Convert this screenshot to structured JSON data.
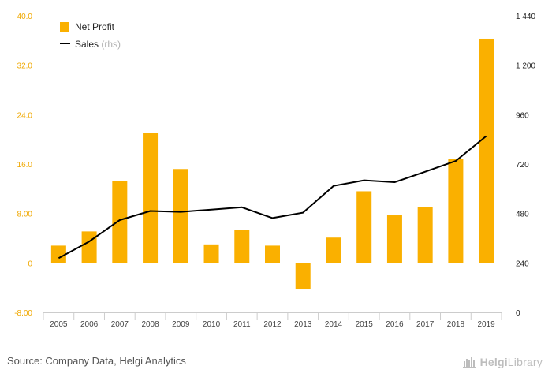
{
  "chart_data": {
    "type": "bar",
    "categories": [
      "2005",
      "2006",
      "2007",
      "2008",
      "2009",
      "2010",
      "2011",
      "2012",
      "2013",
      "2014",
      "2015",
      "2016",
      "2017",
      "2018",
      "2019"
    ],
    "series": [
      {
        "name": "Net Profit",
        "kind": "bar",
        "axis": "left",
        "color": "#FAB000",
        "values": [
          2.8,
          5.1,
          13.2,
          21.1,
          15.2,
          3.0,
          5.4,
          2.8,
          -4.3,
          4.1,
          11.6,
          7.7,
          9.1,
          16.8,
          36.3
        ]
      },
      {
        "name": "Sales",
        "kind": "line",
        "axis": "right",
        "color": "#000000",
        "values": [
          263,
          344,
          448,
          492,
          488,
          499,
          510,
          458,
          484,
          614,
          641,
          632,
          683,
          735,
          856
        ]
      }
    ],
    "y_left": {
      "ylim": [
        -8,
        40
      ],
      "ticks": [
        "-8.00",
        "0",
        "8.00",
        "16.0",
        "24.0",
        "32.0",
        "40.0"
      ],
      "tick_values": [
        -8,
        0,
        8,
        16,
        24,
        32,
        40
      ]
    },
    "y_right": {
      "ylim": [
        0,
        1440
      ],
      "ticks": [
        "0",
        "240",
        "480",
        "720",
        "960",
        "1 200",
        "1 440"
      ],
      "tick_values": [
        0,
        240,
        480,
        720,
        960,
        1200,
        1440
      ]
    },
    "legend": {
      "placement": "top-left",
      "items": [
        {
          "label": "Net Profit",
          "suffix": "",
          "marker": "square"
        },
        {
          "label": "Sales",
          "suffix": " (rhs)",
          "marker": "line"
        }
      ]
    },
    "grid": false
  },
  "footer": {
    "source": "Source: Company Data, Helgi Analytics",
    "brand_prefix": "Helgi",
    "brand_suffix": "Library"
  },
  "colors": {
    "bar": "#FAB000",
    "line": "#000000",
    "left_tick": "#F0A800",
    "axis_line": "#999999"
  }
}
